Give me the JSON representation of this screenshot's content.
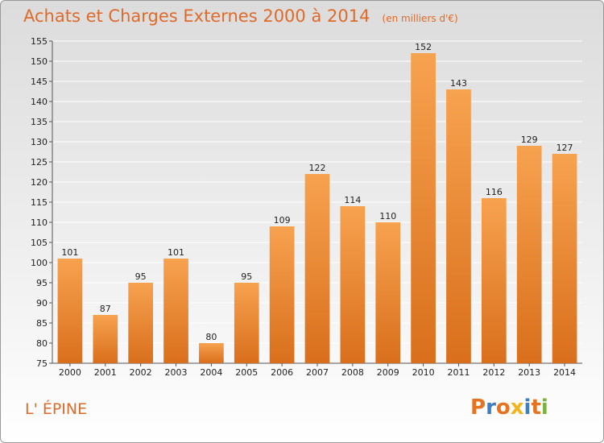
{
  "header": {
    "title": "Achats et Charges Externes 2000 à 2014",
    "unit": "(en milliers d'€)"
  },
  "footer": {
    "commune": "L' ÉPINE",
    "logo": "Proxiti"
  },
  "colors": {
    "title": "#e06a2a",
    "bar_top": "#f7a24f",
    "bar_bottom": "#d96f1c",
    "logo_letters": [
      "#e8731f",
      "#3d7fc1",
      "#e8731f",
      "#f2b51d",
      "#3d7fc1",
      "#e8731f",
      "#7ab33b"
    ]
  },
  "chart_data": {
    "type": "bar",
    "title": "Achats et Charges Externes 2000 à 2014",
    "xlabel": "",
    "ylabel": "",
    "categories": [
      "2000",
      "2001",
      "2002",
      "2003",
      "2004",
      "2005",
      "2006",
      "2007",
      "2008",
      "2009",
      "2010",
      "2011",
      "2012",
      "2013",
      "2014"
    ],
    "values": [
      101,
      87,
      95,
      101,
      80,
      95,
      109,
      122,
      114,
      110,
      152,
      143,
      116,
      129,
      127
    ],
    "ylim": [
      75,
      155
    ],
    "yticks": [
      75,
      80,
      85,
      90,
      95,
      100,
      105,
      110,
      115,
      120,
      125,
      130,
      135,
      140,
      145,
      150,
      155
    ],
    "grid": true,
    "legend": "none"
  }
}
